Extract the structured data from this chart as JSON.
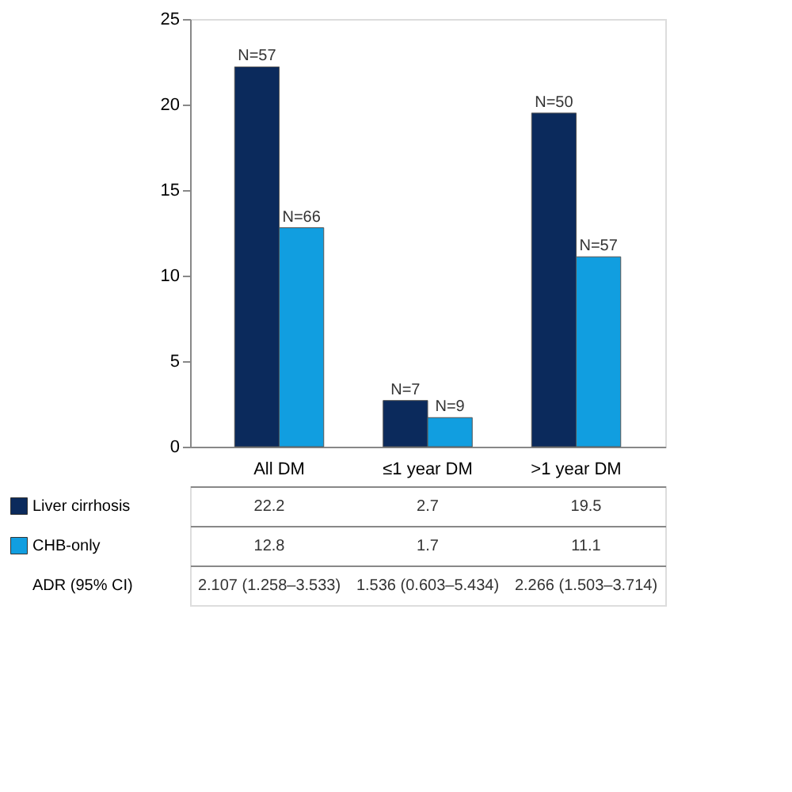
{
  "chart_data": {
    "type": "bar",
    "categories": [
      "All DM",
      "≤1 year DM",
      ">1 year DM"
    ],
    "series": [
      {
        "name": "Liver cirrhosis",
        "color": "#0b2a5c",
        "values": [
          22.2,
          2.7,
          19.5
        ]
      },
      {
        "name": "CHB-only",
        "color": "#119ee0",
        "values": [
          12.8,
          1.7,
          11.1
        ]
      }
    ],
    "ylim": [
      0,
      25
    ],
    "yticks": [
      0,
      5,
      10,
      15,
      20,
      25
    ],
    "grid": false,
    "data_labels": true,
    "legend": "bottom left",
    "annotations": [
      {
        "text": "N=57",
        "x": "All DM",
        "y": 22.2
      },
      {
        "text": "N=66",
        "x": "All DM",
        "y": 12.8
      },
      {
        "text": "N=7",
        "x": "≤1 year DM",
        "y": 2.7
      },
      {
        "text": "N=9",
        "x": "≤1 year DM",
        "y": 1.7
      },
      {
        "text": "N=50",
        "x": ">1 year DM",
        "y": 19.5
      },
      {
        "text": "N=57",
        "x": ">1 year DM",
        "y": 11.1
      },
      "ADR (95% CI)",
      "2.107 (1.258–3.533)",
      "1.536 (0.603–5.434)",
      "2.266 (1.503–3.714)"
    ]
  }
}
